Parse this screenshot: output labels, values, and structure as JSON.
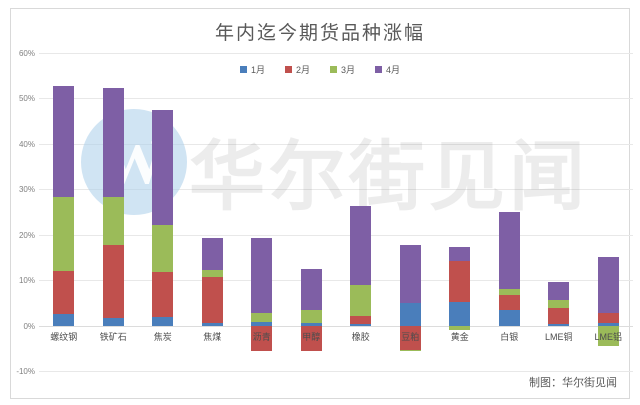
{
  "page": {
    "title": "年内迄今期货品种涨幅",
    "credit": "制图：华尔街见闻",
    "watermark_text": "华尔街见闻",
    "watermark_logo": "W"
  },
  "chart_data": {
    "type": "bar",
    "stacked": true,
    "title": "年内迄今期货品种涨幅",
    "grid": true,
    "legend_position": "top-center",
    "ylim": [
      -10,
      60
    ],
    "ytick_step": 10,
    "ytick_labels": [
      "60%",
      "50%",
      "40%",
      "30%",
      "20%",
      "10%",
      "0%",
      "-10%"
    ],
    "categories": [
      "螺纹钢",
      "铁矿石",
      "焦炭",
      "焦煤",
      "沥青",
      "甲醇",
      "橡胶",
      "豆粕",
      "黄金",
      "白银",
      "LME铜",
      "LME铝"
    ],
    "series": [
      {
        "name": "1月",
        "color": "#4a7ebb",
        "values": [
          2.5,
          1.6,
          1.9,
          0.5,
          0.8,
          0.6,
          0.3,
          5.0,
          5.1,
          3.4,
          0.4,
          0.5
        ]
      },
      {
        "name": "2月",
        "color": "#c0504d",
        "values": [
          9.6,
          16.1,
          9.8,
          10.2,
          -5.7,
          -5.5,
          1.8,
          -5.3,
          9.1,
          3.3,
          3.4,
          2.3
        ]
      },
      {
        "name": "3月",
        "color": "#9bbb59",
        "values": [
          16.3,
          10.5,
          10.5,
          1.5,
          1.9,
          2.9,
          6.9,
          -0.3,
          -1.0,
          1.3,
          1.8,
          -4.6
        ]
      },
      {
        "name": "4月",
        "color": "#7e5fa5",
        "values": [
          24.3,
          24.1,
          25.2,
          7.1,
          16.6,
          8.9,
          17.4,
          12.7,
          3.1,
          17.0,
          3.9,
          12.4
        ]
      }
    ],
    "totals_net": [
      52.7,
      52.3,
      47.4,
      19.3,
      13.6,
      6.9,
      26.4,
      12.1,
      16.3,
      25.0,
      9.5,
      10.6
    ]
  }
}
